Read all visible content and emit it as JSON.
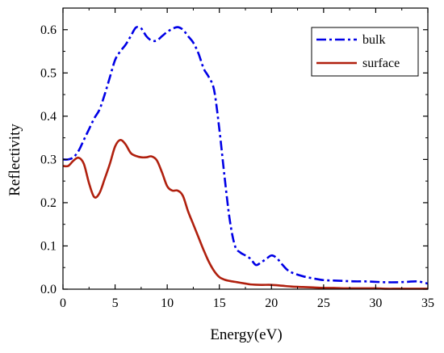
{
  "chart_data": {
    "type": "line",
    "title": "",
    "xlabel": "Energy(eV)",
    "ylabel": "Reflectivity",
    "xlim": [
      0,
      35
    ],
    "ylim": [
      0,
      0.65
    ],
    "xticks": [
      0,
      5,
      10,
      15,
      20,
      25,
      30,
      35
    ],
    "xtick_labels": [
      "0",
      "5",
      "10",
      "15",
      "20",
      "25",
      "30",
      "35"
    ],
    "yticks": [
      0.0,
      0.1,
      0.2,
      0.3,
      0.4,
      0.5,
      0.6
    ],
    "ytick_labels": [
      "0.0",
      "0.1",
      "0.2",
      "0.3",
      "0.4",
      "0.5",
      "0.6"
    ],
    "grid": false,
    "legend_position": "top-right",
    "series": [
      {
        "name": "bulk",
        "color": "#0000e6",
        "style": "dash-dot",
        "x": [
          0,
          0.5,
          1,
          1.5,
          2,
          2.5,
          3,
          3.5,
          4,
          4.5,
          5,
          5.5,
          6,
          6.5,
          7,
          7.5,
          8,
          8.5,
          9,
          9.5,
          10,
          10.5,
          11,
          11.5,
          12,
          12.5,
          13,
          13.5,
          14,
          14.5,
          15,
          15.5,
          16,
          16.5,
          17,
          17.5,
          18,
          18.5,
          19,
          19.5,
          20,
          20.5,
          21,
          21.5,
          22,
          23,
          24,
          25,
          26,
          27,
          28,
          29,
          30,
          31,
          32,
          33,
          34,
          35
        ],
        "y": [
          0.3,
          0.3,
          0.305,
          0.32,
          0.345,
          0.37,
          0.395,
          0.415,
          0.45,
          0.49,
          0.53,
          0.55,
          0.565,
          0.585,
          0.605,
          0.603,
          0.585,
          0.575,
          0.575,
          0.585,
          0.595,
          0.602,
          0.606,
          0.6,
          0.585,
          0.57,
          0.545,
          0.51,
          0.49,
          0.46,
          0.37,
          0.26,
          0.16,
          0.1,
          0.085,
          0.078,
          0.07,
          0.056,
          0.062,
          0.07,
          0.078,
          0.072,
          0.058,
          0.045,
          0.038,
          0.03,
          0.025,
          0.021,
          0.02,
          0.019,
          0.018,
          0.018,
          0.017,
          0.016,
          0.016,
          0.017,
          0.018,
          0.013
        ]
      },
      {
        "name": "surface",
        "color": "#b0200e",
        "style": "solid",
        "x": [
          0,
          0.5,
          1,
          1.5,
          2,
          2.5,
          3,
          3.5,
          4,
          4.5,
          5,
          5.5,
          6,
          6.5,
          7,
          7.5,
          8,
          8.5,
          9,
          9.5,
          10,
          10.5,
          11,
          11.5,
          12,
          12.5,
          13,
          13.5,
          14,
          14.5,
          15,
          15.5,
          16,
          16.5,
          17,
          17.5,
          18,
          19,
          20,
          21,
          22,
          23,
          24,
          25,
          26,
          27,
          28,
          29,
          30,
          31,
          32,
          33,
          34,
          35
        ],
        "y": [
          0.285,
          0.285,
          0.297,
          0.304,
          0.29,
          0.245,
          0.213,
          0.222,
          0.255,
          0.29,
          0.33,
          0.345,
          0.335,
          0.315,
          0.308,
          0.305,
          0.305,
          0.307,
          0.298,
          0.27,
          0.238,
          0.228,
          0.228,
          0.216,
          0.18,
          0.15,
          0.12,
          0.09,
          0.063,
          0.042,
          0.028,
          0.022,
          0.019,
          0.017,
          0.015,
          0.013,
          0.011,
          0.01,
          0.01,
          0.008,
          0.006,
          0.005,
          0.004,
          0.003,
          0.003,
          0.002,
          0.002,
          0.002,
          0.002,
          0.001,
          0.001,
          0.001,
          0.001,
          0.001
        ]
      }
    ]
  }
}
